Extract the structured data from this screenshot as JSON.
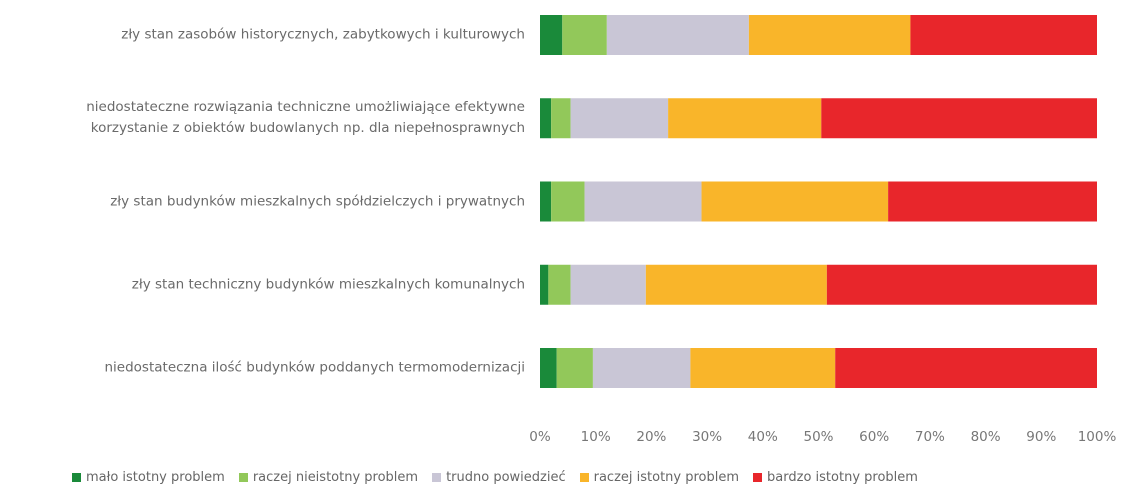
{
  "chart_data": {
    "type": "stacked-bar-horizontal",
    "categories": [
      "zły stan zasobów historycznych, zabytkowych i kulturowych",
      "niedostateczne rozwiązania techniczne umożliwiające efektywne\nkorzystanie z obiektów budowlanych np. dla niepełnosprawnych",
      "zły stan budynków mieszkalnych spółdzielczych i prywatnych",
      "zły stan techniczny budynków mieszkalnych komunalnych",
      "niedostateczna ilość budynków poddanych termomodernizacji"
    ],
    "series": [
      {
        "name": "mało istotny problem",
        "color": "#1a8a3a",
        "values": [
          4,
          2,
          2,
          1.5,
          3
        ]
      },
      {
        "name": "raczej nieistotny problem",
        "color": "#92c85a",
        "values": [
          8,
          3.5,
          6,
          4,
          6.5
        ]
      },
      {
        "name": "trudno powiedzieć",
        "color": "#c9c6d6",
        "values": [
          25.5,
          17.5,
          21,
          13.5,
          17.5
        ]
      },
      {
        "name": "raczej istotny problem",
        "color": "#f9b52a",
        "values": [
          29,
          27.5,
          33.5,
          32.5,
          26
        ]
      },
      {
        "name": "bardzo istotny problem",
        "color": "#e8262b",
        "values": [
          33.5,
          49.5,
          37.5,
          48.5,
          47
        ]
      }
    ],
    "xlim": [
      0,
      100
    ],
    "xticks": [
      {
        "value": 0,
        "label": "0%"
      },
      {
        "value": 10,
        "label": "10%"
      },
      {
        "value": 20,
        "label": "20%"
      },
      {
        "value": 30,
        "label": "30%"
      },
      {
        "value": 40,
        "label": "40%"
      },
      {
        "value": 50,
        "label": "50%"
      },
      {
        "value": 60,
        "label": "60%"
      },
      {
        "value": 70,
        "label": "70%"
      },
      {
        "value": 80,
        "label": "80%"
      },
      {
        "value": 90,
        "label": "90%"
      },
      {
        "value": 100,
        "label": "100%"
      }
    ]
  }
}
